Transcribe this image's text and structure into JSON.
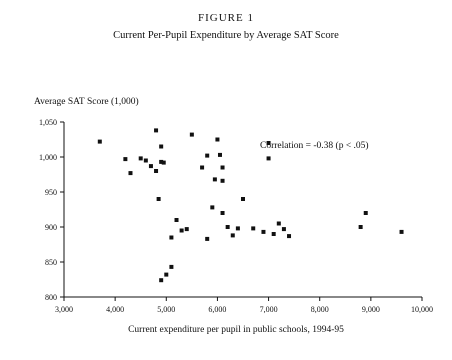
{
  "figure_label": "FIGURE 1",
  "chart_data": {
    "type": "scatter",
    "title": "Current Per-Pupil Expenditure by Average SAT Score",
    "ylabel": "Average SAT Score (1,000)",
    "xlabel": "Current expenditure per pupil in public schools, 1994-95",
    "annotation": "Correlation = -0.38 (p < .05)",
    "xlim": [
      3000,
      10000
    ],
    "ylim": [
      800,
      1050
    ],
    "x_ticks": [
      "3,000",
      "4,000",
      "5,000",
      "6,000",
      "7,000",
      "8,000",
      "9,000",
      "10,000"
    ],
    "y_ticks": [
      "800",
      "850",
      "900",
      "950",
      "1,000",
      "1,050"
    ],
    "points": [
      {
        "x": 3700,
        "y": 1022
      },
      {
        "x": 4200,
        "y": 997
      },
      {
        "x": 4300,
        "y": 977
      },
      {
        "x": 4500,
        "y": 998
      },
      {
        "x": 4600,
        "y": 995
      },
      {
        "x": 4700,
        "y": 987
      },
      {
        "x": 4800,
        "y": 980
      },
      {
        "x": 4800,
        "y": 1038
      },
      {
        "x": 4900,
        "y": 1015
      },
      {
        "x": 4900,
        "y": 993
      },
      {
        "x": 4950,
        "y": 992
      },
      {
        "x": 4850,
        "y": 940
      },
      {
        "x": 4900,
        "y": 824
      },
      {
        "x": 5000,
        "y": 832
      },
      {
        "x": 5100,
        "y": 843
      },
      {
        "x": 5100,
        "y": 885
      },
      {
        "x": 5200,
        "y": 910
      },
      {
        "x": 5300,
        "y": 895
      },
      {
        "x": 5400,
        "y": 897
      },
      {
        "x": 5500,
        "y": 1032
      },
      {
        "x": 5700,
        "y": 985
      },
      {
        "x": 5800,
        "y": 1002
      },
      {
        "x": 5800,
        "y": 883
      },
      {
        "x": 5900,
        "y": 928
      },
      {
        "x": 5950,
        "y": 968
      },
      {
        "x": 6000,
        "y": 1025
      },
      {
        "x": 6050,
        "y": 1003
      },
      {
        "x": 6100,
        "y": 985
      },
      {
        "x": 6100,
        "y": 966
      },
      {
        "x": 6100,
        "y": 920
      },
      {
        "x": 6200,
        "y": 900
      },
      {
        "x": 6300,
        "y": 888
      },
      {
        "x": 6400,
        "y": 898
      },
      {
        "x": 6500,
        "y": 940
      },
      {
        "x": 6700,
        "y": 898
      },
      {
        "x": 6900,
        "y": 893
      },
      {
        "x": 7000,
        "y": 1020
      },
      {
        "x": 7000,
        "y": 998
      },
      {
        "x": 7100,
        "y": 890
      },
      {
        "x": 7200,
        "y": 905
      },
      {
        "x": 7300,
        "y": 897
      },
      {
        "x": 7400,
        "y": 887
      },
      {
        "x": 8800,
        "y": 900
      },
      {
        "x": 8900,
        "y": 920
      },
      {
        "x": 9600,
        "y": 893
      }
    ]
  }
}
